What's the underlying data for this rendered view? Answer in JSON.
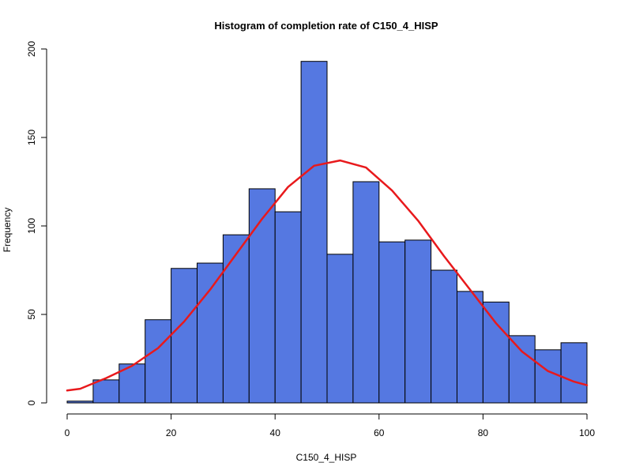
{
  "chart_data": {
    "type": "bar",
    "title": "Histogram of completion rate of  C150_4_HISP",
    "xlabel": "C150_4_HISP",
    "ylabel": "Frequency",
    "xlim": [
      0,
      100
    ],
    "ylim": [
      0,
      200
    ],
    "x_ticks": [
      0,
      20,
      40,
      60,
      80,
      100
    ],
    "y_ticks": [
      0,
      50,
      100,
      150,
      200
    ],
    "bin_edges": [
      0,
      5,
      10,
      15,
      20,
      25,
      30,
      35,
      40,
      45,
      50,
      55,
      60,
      65,
      70,
      75,
      80,
      85,
      90,
      95,
      100
    ],
    "values": [
      1,
      13,
      22,
      47,
      76,
      79,
      95,
      121,
      108,
      193,
      84,
      125,
      91,
      92,
      75,
      63,
      57,
      38,
      30,
      34
    ],
    "series": [
      {
        "type": "line",
        "x": [
          0,
          2.5,
          7.5,
          12.5,
          17.5,
          22.5,
          27.5,
          32.5,
          37.5,
          42.5,
          47.5,
          52.5,
          57.5,
          62.5,
          67.5,
          72.5,
          77.5,
          82.5,
          87.5,
          92.5,
          97.5,
          100
        ],
        "y": [
          7,
          8,
          14,
          21,
          31,
          46,
          64,
          84,
          104,
          122,
          134,
          137,
          133,
          120,
          103,
          83,
          64,
          45,
          29,
          18,
          12,
          10
        ]
      }
    ],
    "bar_color": "#5578E1",
    "line_color": "#E8191C",
    "grid": false
  }
}
